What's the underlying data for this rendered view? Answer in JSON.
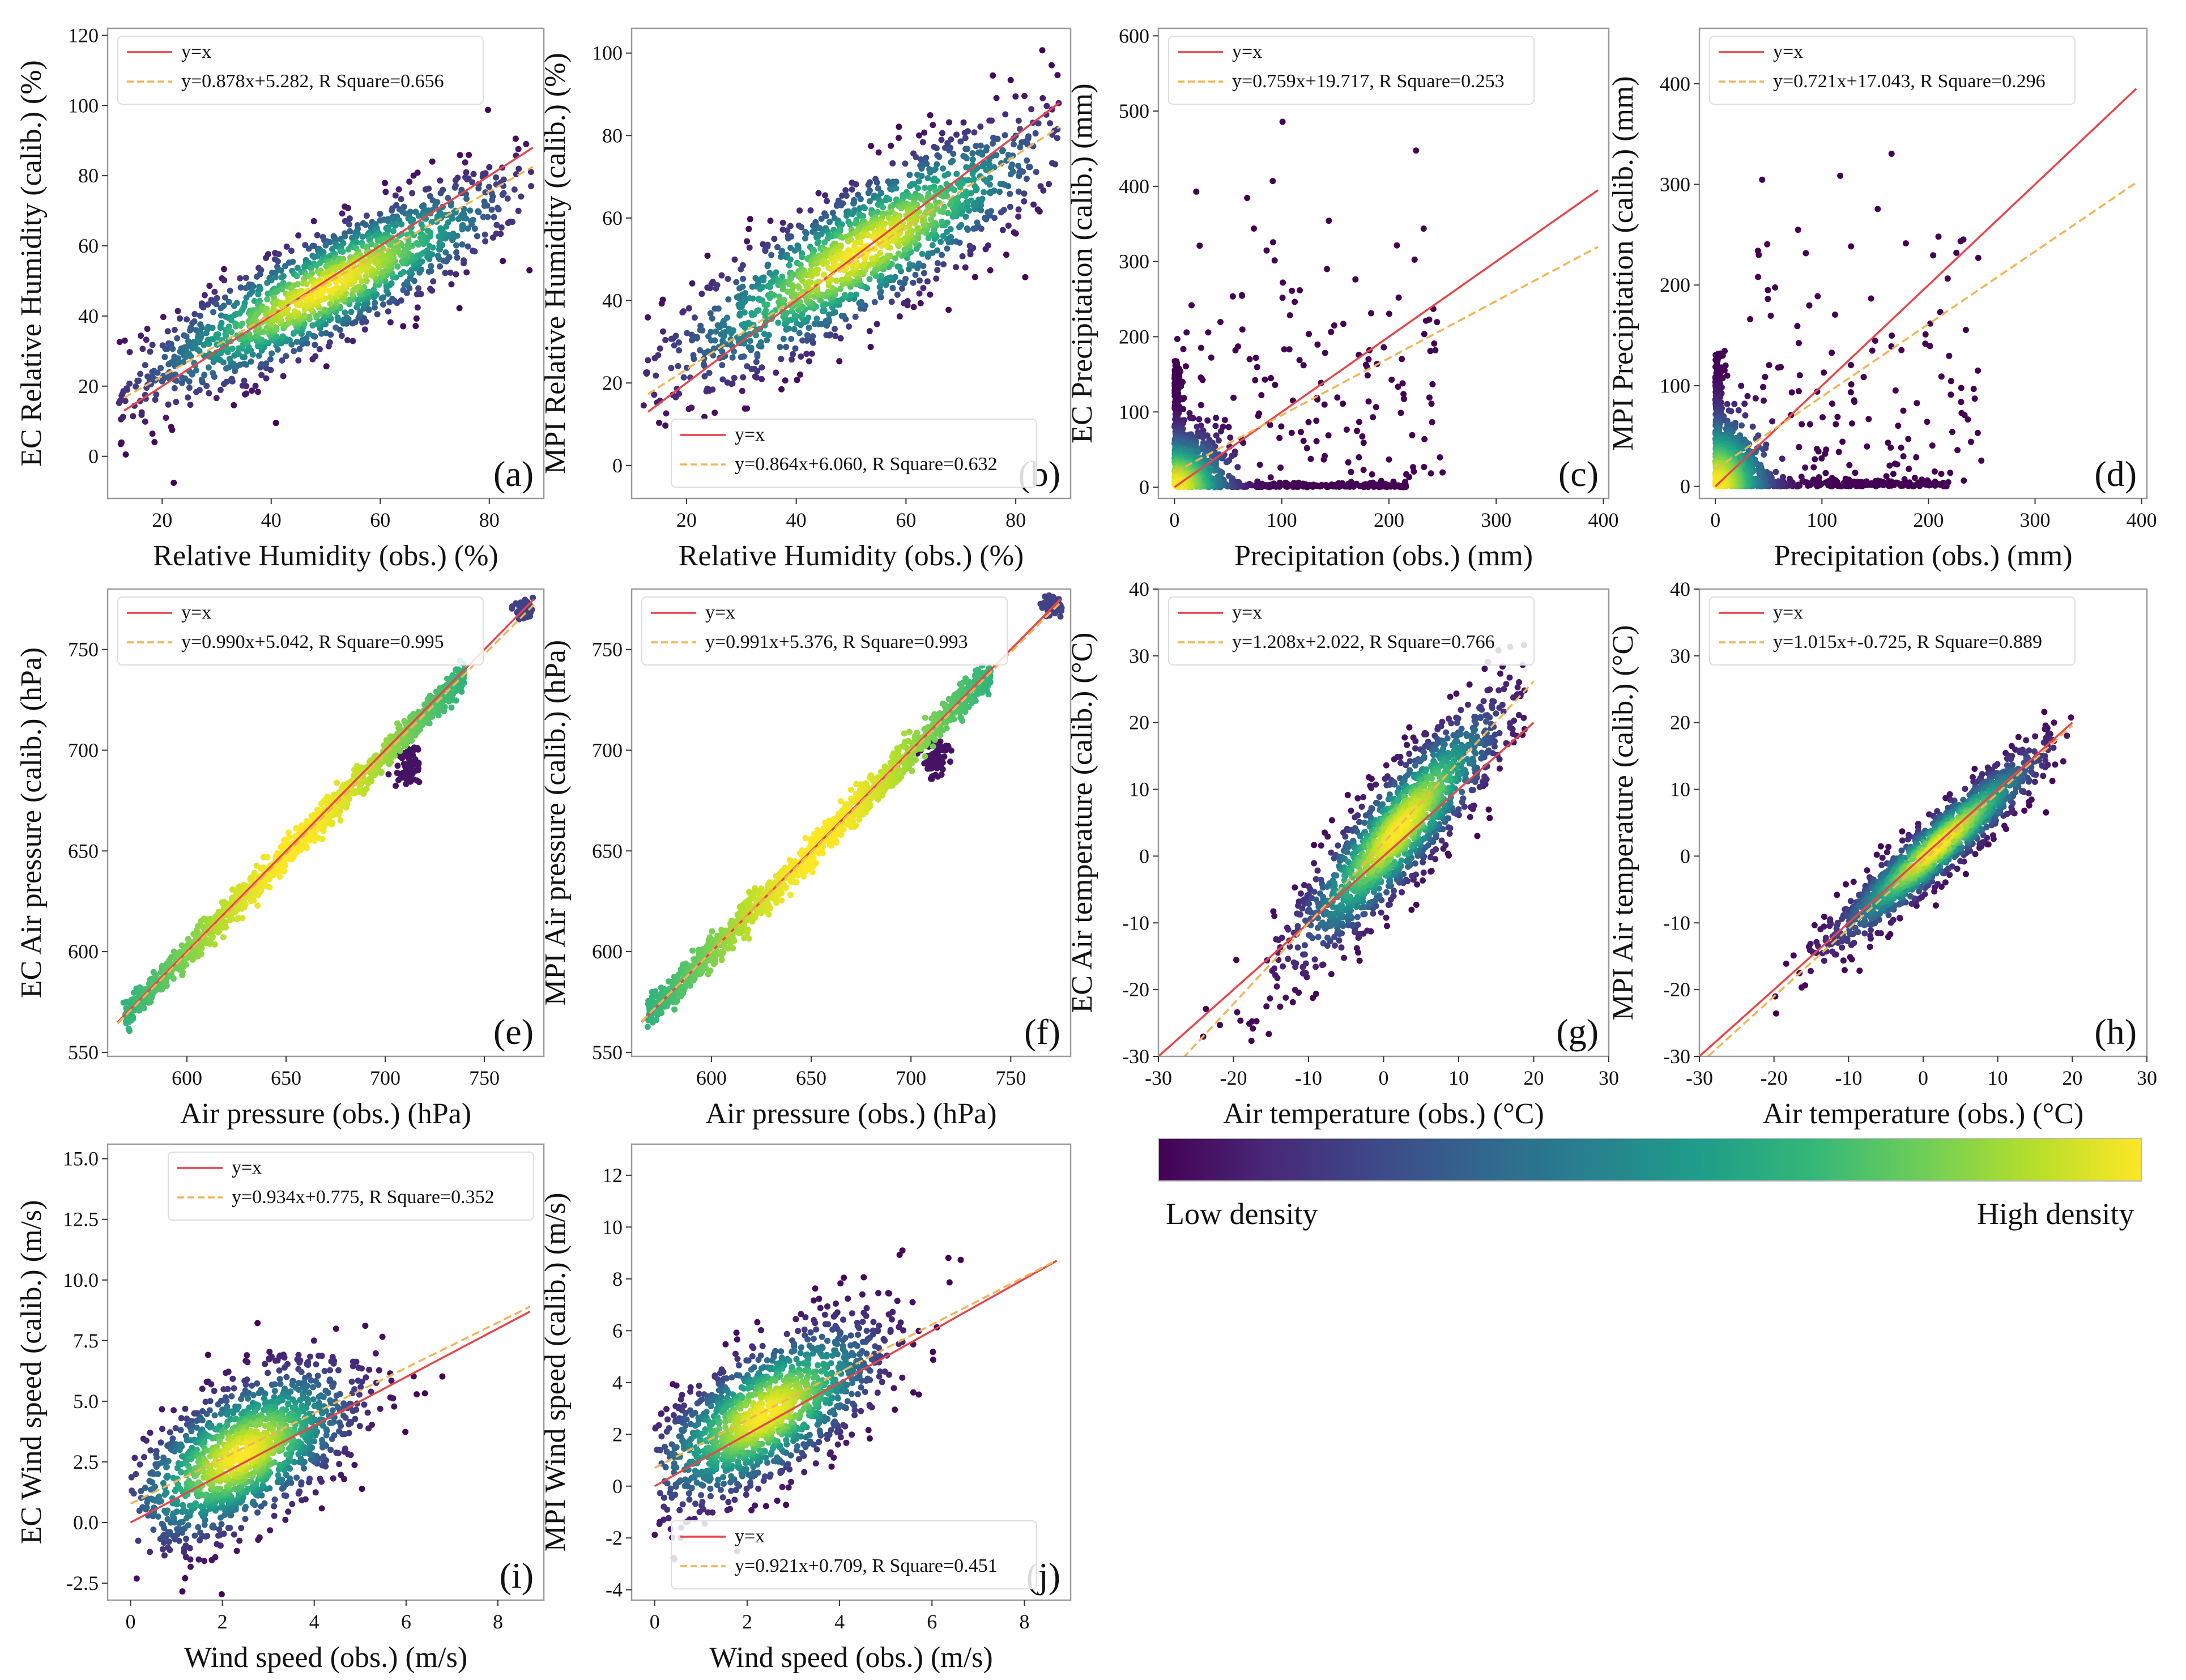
{
  "colors": {
    "identity_line": "#e8454a",
    "fit_line": "#f2b453",
    "frame": "#9a9a9a",
    "text": "#111111",
    "viridis": [
      "#440154",
      "#482878",
      "#3e4989",
      "#31688e",
      "#26828e",
      "#1f9e89",
      "#35b779",
      "#6ece58",
      "#b5de2b",
      "#fde725"
    ]
  },
  "colorbar": {
    "low_label": "Low density",
    "high_label": "High density"
  },
  "chart_data": [
    {
      "type": "scatter",
      "panel_label": "(a)",
      "xlabel": "Relative Humidity (obs.) (%)",
      "ylabel": "EC Relative Humidity (calib.) (%)",
      "xlim": [
        10,
        90
      ],
      "ylim": [
        -12,
        122
      ],
      "xticks": [
        20,
        40,
        60,
        80
      ],
      "yticks": [
        0,
        20,
        40,
        60,
        80,
        100,
        120
      ],
      "legend": {
        "position": "top-left",
        "entries": [
          "y=x",
          "y=0.878x+5.282, R Square=0.656"
        ]
      },
      "fit": {
        "slope": 0.878,
        "intercept": 5.282,
        "r2": 0.656
      },
      "line_range": [
        13,
        88
      ],
      "cloud": {
        "center": [
          50,
          48
        ],
        "sx": 18,
        "sy": 16,
        "corr": 0.86,
        "n": 1500,
        "range_x": [
          12,
          88
        ],
        "range_y": [
          -10,
          120
        ]
      }
    },
    {
      "type": "scatter",
      "panel_label": "(b)",
      "xlabel": "Relative Humidity (obs.) (%)",
      "ylabel": "MPI Relative Humidity (calib.) (%)",
      "xlim": [
        10,
        90
      ],
      "ylim": [
        -8,
        106
      ],
      "xticks": [
        20,
        40,
        60,
        80
      ],
      "yticks": [
        0,
        20,
        40,
        60,
        80,
        100
      ],
      "legend": {
        "position": "bottom-right",
        "entries": [
          "y=x",
          "y=0.864x+6.060, R Square=0.632"
        ]
      },
      "fit": {
        "slope": 0.864,
        "intercept": 6.06,
        "r2": 0.632
      },
      "line_range": [
        13,
        88
      ],
      "cloud": {
        "center": [
          52,
          52
        ],
        "sx": 18,
        "sy": 16,
        "corr": 0.85,
        "n": 1500,
        "range_x": [
          12,
          88
        ],
        "range_y": [
          -5,
          104
        ]
      }
    },
    {
      "type": "scatter",
      "panel_label": "(c)",
      "xlabel": "Precipitation (obs.) (mm)",
      "ylabel": "EC Precipitation (calib.) (mm)",
      "xlim": [
        -15,
        405
      ],
      "ylim": [
        -15,
        610
      ],
      "xticks": [
        0,
        100,
        200,
        300,
        400
      ],
      "yticks": [
        0,
        100,
        200,
        300,
        400,
        500,
        600
      ],
      "legend": {
        "position": "top-left",
        "entries": [
          "y=x",
          "y=0.759x+19.717, R Square=0.253"
        ]
      },
      "fit": {
        "slope": 0.759,
        "intercept": 19.717,
        "r2": 0.253
      },
      "line_range": [
        0,
        395
      ],
      "cloud": {
        "kind": "skewed",
        "scale_x": 45,
        "scale_y": 75,
        "n": 1300,
        "range_x": [
          0,
          395
        ],
        "range_y": [
          0,
          560
        ]
      }
    },
    {
      "type": "scatter",
      "panel_label": "(d)",
      "xlabel": "Precipitation (obs.) (mm)",
      "ylabel": "MPI Precipitation (calib.) (mm)",
      "xlim": [
        -15,
        405
      ],
      "ylim": [
        -12,
        455
      ],
      "xticks": [
        0,
        100,
        200,
        300,
        400
      ],
      "yticks": [
        0,
        100,
        200,
        300,
        400
      ],
      "legend": {
        "position": "top-left",
        "entries": [
          "y=x",
          "y=0.721x+17.043, R Square=0.296"
        ]
      },
      "fit": {
        "slope": 0.721,
        "intercept": 17.043,
        "r2": 0.296
      },
      "line_range": [
        0,
        395
      ],
      "cloud": {
        "kind": "skewed",
        "scale_x": 45,
        "scale_y": 60,
        "n": 1300,
        "range_x": [
          0,
          395
        ],
        "range_y": [
          0,
          440
        ]
      }
    },
    {
      "type": "scatter",
      "panel_label": "(e)",
      "xlabel": "Air pressure (obs.) (hPa)",
      "ylabel": "EC Air pressure (calib.) (hPa)",
      "xlim": [
        560,
        780
      ],
      "ylim": [
        548,
        780
      ],
      "xticks": [
        600,
        650,
        700,
        750
      ],
      "yticks": [
        550,
        600,
        650,
        700,
        750
      ],
      "legend": {
        "position": "top-left",
        "entries": [
          "y=x",
          "y=0.990x+5.042, R Square=0.995"
        ]
      },
      "fit": {
        "slope": 0.99,
        "intercept": 5.042,
        "r2": 0.995
      },
      "line_range": [
        565,
        775
      ],
      "cloud": {
        "kind": "line",
        "x_range": [
          568,
          740
        ],
        "noise": 3.5,
        "n": 1300,
        "cluster": [
          770,
          770
        ],
        "blob": [
          712,
          692
        ]
      }
    },
    {
      "type": "scatter",
      "panel_label": "(f)",
      "xlabel": "Air pressure (obs.) (hPa)",
      "ylabel": "MPI Air pressure (calib.) (hPa)",
      "xlim": [
        560,
        780
      ],
      "ylim": [
        548,
        780
      ],
      "xticks": [
        600,
        650,
        700,
        750
      ],
      "yticks": [
        550,
        600,
        650,
        700,
        750
      ],
      "legend": {
        "position": "top-left",
        "entries": [
          "y=x",
          "y=0.991x+5.376, R Square=0.993"
        ]
      },
      "fit": {
        "slope": 0.991,
        "intercept": 5.376,
        "r2": 0.993
      },
      "line_range": [
        565,
        775
      ],
      "cloud": {
        "kind": "line",
        "x_range": [
          568,
          740
        ],
        "noise": 4,
        "n": 1300,
        "cluster": [
          770,
          772
        ],
        "blob": [
          713,
          696
        ]
      }
    },
    {
      "type": "scatter",
      "panel_label": "(g)",
      "xlabel": "Air temperature (obs.) (°C)",
      "ylabel": "EC Air temperature (calib.) (°C)",
      "xlim": [
        -30,
        30
      ],
      "ylim": [
        -30,
        40
      ],
      "xticks": [
        -30,
        -20,
        -10,
        0,
        10,
        20,
        30
      ],
      "yticks": [
        -30,
        -20,
        -10,
        0,
        10,
        20,
        30,
        40
      ],
      "legend": {
        "position": "top-left",
        "entries": [
          "y=x",
          "y=1.208x+2.022, R Square=0.766"
        ]
      },
      "fit": {
        "slope": 1.208,
        "intercept": 2.022,
        "r2": 0.766
      },
      "line_range": [
        -30,
        20
      ],
      "cloud": {
        "center": [
          2,
          4
        ],
        "sx": 7,
        "sy": 9.5,
        "corr": 0.88,
        "n": 1500,
        "range_x": [
          -30,
          20
        ],
        "range_y": [
          -30,
          38
        ]
      }
    },
    {
      "type": "scatter",
      "panel_label": "(h)",
      "xlabel": "Air temperature (obs.) (°C)",
      "ylabel": "MPI Air temperature (calib.) (°C)",
      "xlim": [
        -30,
        30
      ],
      "ylim": [
        -30,
        40
      ],
      "xticks": [
        -30,
        -20,
        -10,
        0,
        10,
        20,
        30
      ],
      "yticks": [
        -30,
        -20,
        -10,
        0,
        10,
        20,
        30,
        40
      ],
      "legend": {
        "position": "top-left",
        "entries": [
          "y=x",
          "y=1.015x+-0.725, R Square=0.889"
        ]
      },
      "fit": {
        "slope": 1.015,
        "intercept": -0.725,
        "r2": 0.889
      },
      "line_range": [
        -30,
        20
      ],
      "cloud": {
        "center": [
          2,
          1.5
        ],
        "sx": 7,
        "sy": 7.2,
        "corr": 0.94,
        "n": 1500,
        "range_x": [
          -30,
          20
        ],
        "range_y": [
          -30,
          24
        ]
      }
    },
    {
      "type": "scatter",
      "panel_label": "(i)",
      "xlabel": "Wind speed (obs.) (m/s)",
      "ylabel": "EC Wind speed (calib.) (m/s)",
      "xlim": [
        -0.5,
        9
      ],
      "ylim": [
        -3.2,
        15.6
      ],
      "xticks": [
        0,
        2,
        4,
        6,
        8
      ],
      "yticks": [
        -2.5,
        0,
        2.5,
        5,
        7.5,
        10,
        12.5,
        15
      ],
      "ytick_labels": [
        "-2.5",
        "0.0",
        "2.5",
        "5.0",
        "7.5",
        "10.0",
        "12.5",
        "15.0"
      ],
      "legend": {
        "position": "top-right",
        "entries": [
          "y=x",
          "y=0.934x+0.775, R Square=0.352"
        ]
      },
      "fit": {
        "slope": 0.934,
        "intercept": 0.775,
        "r2": 0.352
      },
      "line_range": [
        0,
        8.7
      ],
      "cloud": {
        "center": [
          2.4,
          2.8
        ],
        "sx": 1.3,
        "sy": 1.9,
        "corr": 0.6,
        "n": 1400,
        "range_x": [
          0,
          8.7
        ],
        "range_y": [
          -3,
          15
        ]
      }
    },
    {
      "type": "scatter",
      "panel_label": "(j)",
      "xlabel": "Wind speed (obs.) (m/s)",
      "ylabel": "MPI Wind speed (calib.) (m/s)",
      "xlim": [
        -0.5,
        9
      ],
      "ylim": [
        -4.4,
        13.2
      ],
      "xticks": [
        0,
        2,
        4,
        6,
        8
      ],
      "yticks": [
        -4,
        -2,
        0,
        2,
        4,
        6,
        8,
        10,
        12
      ],
      "legend": {
        "position": "bottom-right",
        "entries": [
          "y=x",
          "y=0.921x+0.709, R Square=0.451"
        ]
      },
      "fit": {
        "slope": 0.921,
        "intercept": 0.709,
        "r2": 0.451
      },
      "line_range": [
        0,
        8.7
      ],
      "cloud": {
        "center": [
          2.4,
          2.8
        ],
        "sx": 1.3,
        "sy": 1.8,
        "corr": 0.67,
        "n": 1400,
        "range_x": [
          0,
          8.7
        ],
        "range_y": [
          -4,
          12.5
        ]
      }
    }
  ]
}
